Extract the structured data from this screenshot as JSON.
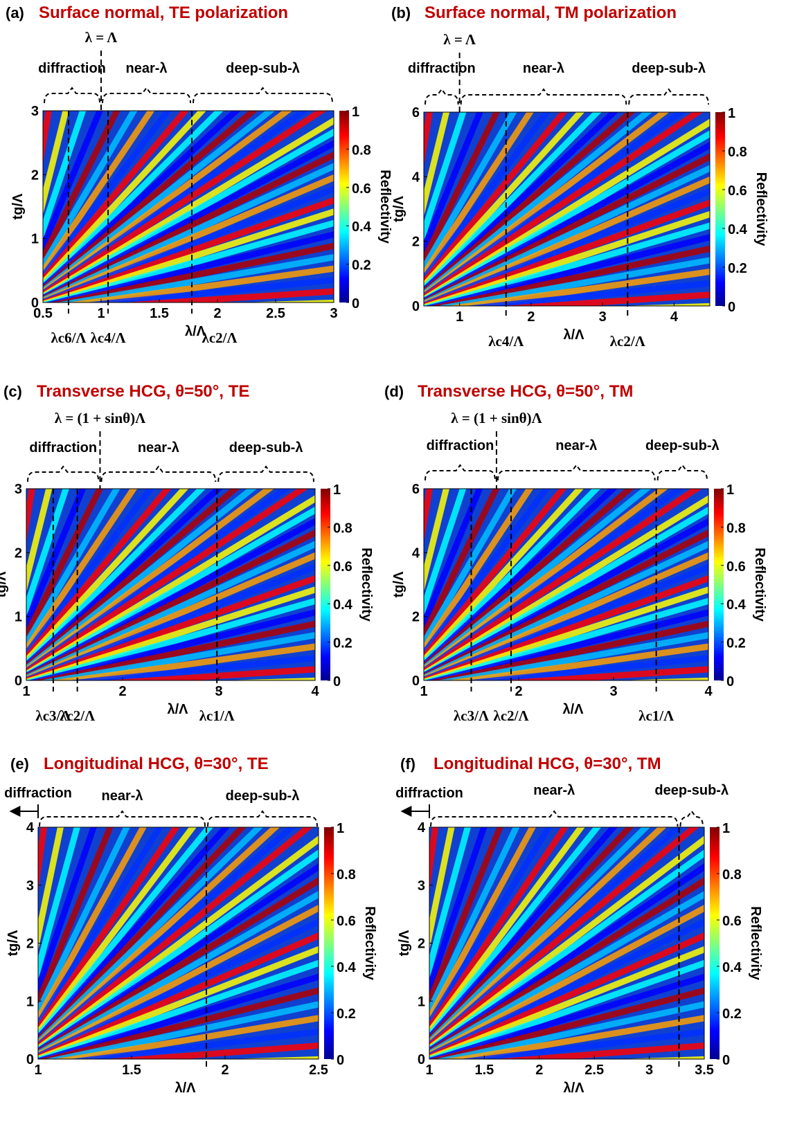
{
  "chart_data": [
    {
      "type": "heatmap",
      "panel": "(a)",
      "title": "Surface normal, TE polarization",
      "xlabel": "λ/Λ",
      "ylabel": "tg/Λ",
      "colorbar_label": "Reflectivity",
      "xlim": [
        0.5,
        3
      ],
      "xticks": [
        0.5,
        1,
        1.5,
        2,
        2.5,
        3
      ],
      "ylim": [
        0,
        3
      ],
      "yticks": [
        0,
        1,
        2,
        3
      ],
      "clim": [
        0,
        1
      ],
      "cticks": [
        0,
        0.2,
        0.4,
        0.6,
        0.8,
        1
      ],
      "boundary": {
        "x": 1,
        "label": "λ = Λ"
      },
      "markers": [
        {
          "x": 0.72,
          "label": "λc6/Λ"
        },
        {
          "x": 1.06,
          "label": "λc4/Λ"
        },
        {
          "x": 1.78,
          "label": "λc2/Λ"
        }
      ],
      "regions": [
        {
          "label": "diffraction",
          "range": [
            0.5,
            1
          ]
        },
        {
          "label": "near-λ",
          "range": [
            1,
            1.78
          ]
        },
        {
          "label": "deep-sub-λ",
          "range": [
            1.78,
            3
          ]
        }
      ]
    },
    {
      "type": "heatmap",
      "panel": "(b)",
      "title": "Surface normal, TM polarization",
      "xlabel": "λ/Λ",
      "ylabel": "tg/Λ",
      "colorbar_label": "Reflectivity",
      "xlim": [
        0.5,
        4.5
      ],
      "xticks": [
        1,
        2,
        3,
        4
      ],
      "ylim": [
        0,
        6
      ],
      "yticks": [
        0,
        2,
        4,
        6
      ],
      "clim": [
        0,
        1
      ],
      "cticks": [
        0,
        0.2,
        0.4,
        0.6,
        0.8,
        1
      ],
      "boundary": {
        "x": 1,
        "label": "λ = Λ"
      },
      "markers": [
        {
          "x": 1.65,
          "label": "λc4/Λ"
        },
        {
          "x": 3.35,
          "label": "λc2/Λ"
        }
      ],
      "regions": [
        {
          "label": "diffraction",
          "range": [
            0.5,
            1
          ]
        },
        {
          "label": "near-λ",
          "range": [
            1,
            3.35
          ]
        },
        {
          "label": "deep-sub-λ",
          "range": [
            3.35,
            4.5
          ]
        }
      ]
    },
    {
      "type": "heatmap",
      "panel": "(c)",
      "title": "Transverse HCG, θ=50°, TE",
      "xlabel": "λ/Λ",
      "ylabel": "tg/Λ",
      "colorbar_label": "Reflectivity",
      "xlim": [
        1,
        4
      ],
      "xticks": [
        1,
        2,
        3,
        4
      ],
      "ylim": [
        0,
        3
      ],
      "yticks": [
        0,
        1,
        2,
        3
      ],
      "clim": [
        0,
        1
      ],
      "cticks": [
        0,
        0.2,
        0.4,
        0.6,
        0.8,
        1
      ],
      "boundary": {
        "x": 1.766,
        "label": "λ = (1 + sinθ)Λ"
      },
      "markers": [
        {
          "x": 1.28,
          "label": "λc3/Λ"
        },
        {
          "x": 1.53,
          "label": "λc2/Λ"
        },
        {
          "x": 2.98,
          "label": "λc1/Λ"
        }
      ],
      "regions": [
        {
          "label": "diffraction",
          "range": [
            1,
            1.766
          ]
        },
        {
          "label": "near-λ",
          "range": [
            1.766,
            2.98
          ]
        },
        {
          "label": "deep-sub-λ",
          "range": [
            2.98,
            4
          ]
        }
      ]
    },
    {
      "type": "heatmap",
      "panel": "(d)",
      "title": "Transverse HCG, θ=50°, TM",
      "xlabel": "λ/Λ",
      "ylabel": "tg/Λ",
      "colorbar_label": "Reflectivity",
      "xlim": [
        1,
        4
      ],
      "xticks": [
        1,
        2,
        3,
        4
      ],
      "ylim": [
        0,
        6
      ],
      "yticks": [
        0,
        2,
        4,
        6
      ],
      "clim": [
        0,
        1
      ],
      "cticks": [
        0,
        0.2,
        0.4,
        0.6,
        0.8,
        1
      ],
      "boundary": {
        "x": 1.766,
        "label": "λ = (1 + sinθ)Λ"
      },
      "markers": [
        {
          "x": 1.5,
          "label": "λc3/Λ"
        },
        {
          "x": 1.92,
          "label": "λc2/Λ"
        },
        {
          "x": 3.45,
          "label": "λc1/Λ"
        }
      ],
      "regions": [
        {
          "label": "diffraction",
          "range": [
            1,
            1.766
          ]
        },
        {
          "label": "near-λ",
          "range": [
            1.766,
            3.45
          ]
        },
        {
          "label": "deep-sub-λ",
          "range": [
            3.45,
            4
          ]
        }
      ]
    },
    {
      "type": "heatmap",
      "panel": "(e)",
      "title": "Longitudinal HCG, θ=30°, TE",
      "xlabel": "λ/Λ",
      "ylabel": "tg/Λ",
      "colorbar_label": "Reflectivity",
      "xlim": [
        1,
        2.5
      ],
      "xticks": [
        1,
        1.5,
        2,
        2.5
      ],
      "ylim": [
        0,
        4
      ],
      "yticks": [
        0,
        1,
        2,
        3,
        4
      ],
      "clim": [
        0,
        1
      ],
      "cticks": [
        0,
        0.2,
        0.4,
        0.6,
        0.8,
        1
      ],
      "left_arrow": "diffraction",
      "markers": [
        {
          "x": 1.9
        }
      ],
      "regions": [
        {
          "label": "near-λ",
          "range": [
            1,
            1.9
          ]
        },
        {
          "label": "deep-sub-λ",
          "range": [
            1.9,
            2.5
          ]
        }
      ]
    },
    {
      "type": "heatmap",
      "panel": "(f)",
      "title": "Longitudinal HCG, θ=30°, TM",
      "xlabel": "λ/Λ",
      "ylabel": "tg/Λ",
      "colorbar_label": "Reflectivity",
      "xlim": [
        1,
        3.5
      ],
      "xticks": [
        1,
        1.5,
        2,
        2.5,
        3,
        3.5
      ],
      "ylim": [
        0,
        4
      ],
      "yticks": [
        0,
        1,
        2,
        3,
        4
      ],
      "clim": [
        0,
        1
      ],
      "cticks": [
        0,
        0.2,
        0.4,
        0.6,
        0.8,
        1
      ],
      "left_arrow": "diffraction",
      "markers": [
        {
          "x": 3.27
        }
      ],
      "regions": [
        {
          "label": "near-λ",
          "range": [
            1,
            3.27
          ]
        },
        {
          "label": "deep-sub-λ",
          "range": [
            3.27,
            3.5
          ]
        }
      ]
    }
  ]
}
